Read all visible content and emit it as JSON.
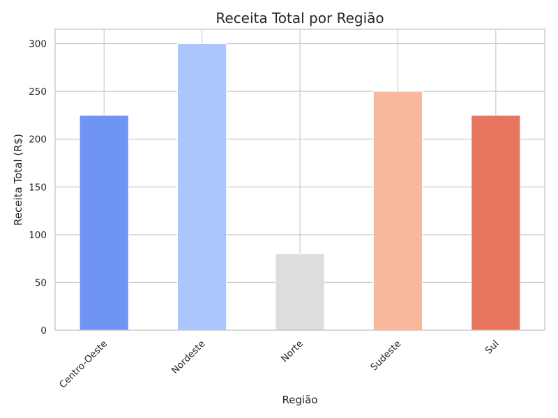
{
  "chart_data": {
    "type": "bar",
    "title": "Receita Total por Região",
    "xlabel": "Região",
    "ylabel": "Receita Total (R$)",
    "categories": [
      "Centro-Oeste",
      "Nordeste",
      "Norte",
      "Sudeste",
      "Sul"
    ],
    "values": [
      225,
      300,
      80,
      250,
      225
    ],
    "colors": [
      "#7094f4",
      "#aac6fd",
      "#dddddd",
      "#f7b89b",
      "#e8765f"
    ],
    "ylim": [
      0,
      315
    ],
    "yticks": [
      0,
      50,
      100,
      150,
      200,
      250,
      300
    ],
    "grid": true,
    "legend": "none"
  }
}
